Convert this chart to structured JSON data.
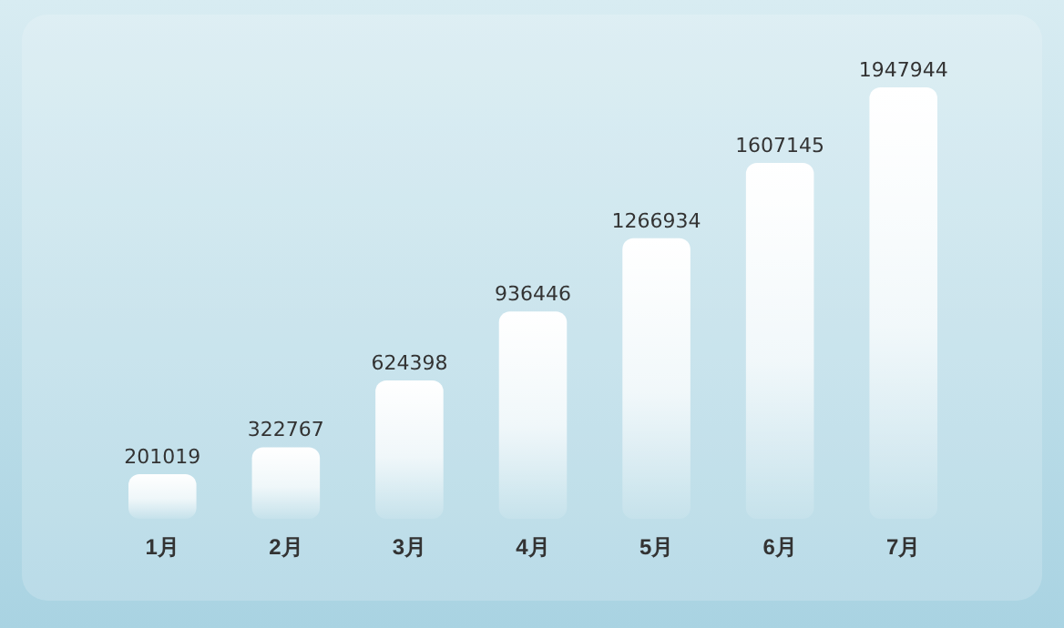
{
  "chart_data": {
    "type": "bar",
    "categories": [
      "1月",
      "2月",
      "3月",
      "4月",
      "5月",
      "6月",
      "7月"
    ],
    "values": [
      201019,
      322767,
      624398,
      936446,
      1266934,
      1607145,
      1947944
    ],
    "color": "#ffffff",
    "data_labels": true,
    "relative": false
  }
}
